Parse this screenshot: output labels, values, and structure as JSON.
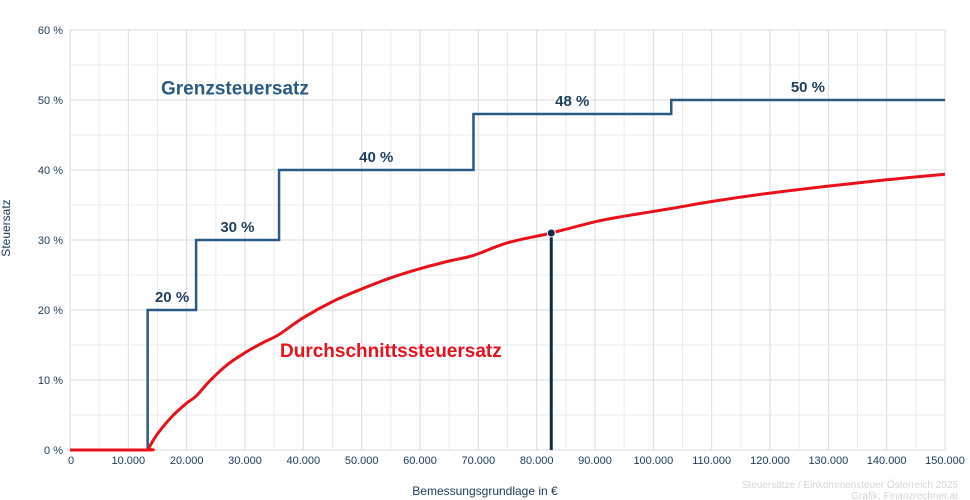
{
  "chart_data": {
    "type": "line",
    "xlabel": "Bemessungsgrundlage in €",
    "ylabel": "Steuersatz",
    "xlim": [
      0,
      150000
    ],
    "ylim": [
      0,
      60
    ],
    "x_ticks": [
      0,
      10000,
      20000,
      30000,
      40000,
      50000,
      60000,
      70000,
      80000,
      90000,
      100000,
      110000,
      120000,
      130000,
      140000,
      150000
    ],
    "x_tick_labels": [
      "0",
      "10.000",
      "20.000",
      "30.000",
      "40.000",
      "50.000",
      "60.000",
      "70.000",
      "80.000",
      "90.000",
      "100.000",
      "110.000",
      "120.000",
      "130.000",
      "140.000",
      "150.000"
    ],
    "y_ticks": [
      0,
      10,
      20,
      30,
      40,
      50,
      60
    ],
    "y_tick_labels": [
      "0 %",
      "10 %",
      "20 %",
      "30 %",
      "40 %",
      "50 %",
      "60 %"
    ],
    "grid": true,
    "series": [
      {
        "name": "Grenzsteuersatz",
        "color": "#2b5b84",
        "kind": "step",
        "points": [
          [
            0,
            0
          ],
          [
            13308,
            0
          ],
          [
            13308,
            20
          ],
          [
            21617,
            20
          ],
          [
            21617,
            30
          ],
          [
            35836,
            30
          ],
          [
            35836,
            40
          ],
          [
            69166,
            40
          ],
          [
            69166,
            48
          ],
          [
            103072,
            48
          ],
          [
            103072,
            50
          ],
          [
            150000,
            50
          ]
        ]
      },
      {
        "name": "Durchschnittssteuersatz",
        "color": "#e8121c",
        "kind": "line",
        "points": [
          [
            0,
            0
          ],
          [
            13308,
            0
          ],
          [
            13500,
            0.3
          ],
          [
            15000,
            2.3
          ],
          [
            17500,
            4.8
          ],
          [
            20000,
            6.7
          ],
          [
            21617,
            7.7
          ],
          [
            24000,
            9.9
          ],
          [
            27000,
            12.2
          ],
          [
            30000,
            13.9
          ],
          [
            33000,
            15.3
          ],
          [
            35836,
            16.5
          ],
          [
            40000,
            18.9
          ],
          [
            45000,
            21.2
          ],
          [
            50000,
            23.0
          ],
          [
            55000,
            24.6
          ],
          [
            60000,
            25.9
          ],
          [
            65000,
            27.0
          ],
          [
            69166,
            27.8
          ],
          [
            75000,
            29.6
          ],
          [
            82500,
            31.0
          ],
          [
            90000,
            32.6
          ],
          [
            95000,
            33.4
          ],
          [
            103072,
            34.5
          ],
          [
            110000,
            35.5
          ],
          [
            120000,
            36.7
          ],
          [
            130000,
            37.7
          ],
          [
            140000,
            38.6
          ],
          [
            150000,
            39.4
          ]
        ]
      }
    ],
    "step_labels": [
      {
        "text": "20 %",
        "x": 17500,
        "y": 20
      },
      {
        "text": "30 %",
        "x": 28700,
        "y": 30
      },
      {
        "text": "40 %",
        "x": 52500,
        "y": 40
      },
      {
        "text": "48 %",
        "x": 86100,
        "y": 48
      },
      {
        "text": "50 %",
        "x": 126500,
        "y": 50
      }
    ],
    "series_labels": [
      {
        "text": "Grenzsteuersatz",
        "x": 15600,
        "y": 50.8,
        "color": "#2b5b84"
      },
      {
        "text": "Durchschnittssteuersatz",
        "x": 36000,
        "y": 13.3,
        "color": "#e8121c"
      }
    ],
    "marker": {
      "x": 82500,
      "y": 31.0,
      "color": "#0d2a48"
    },
    "credits": [
      "Steuersätze / Einkommensteuer Österreich 2025",
      "Grafik: Finanzrechner.at"
    ]
  }
}
